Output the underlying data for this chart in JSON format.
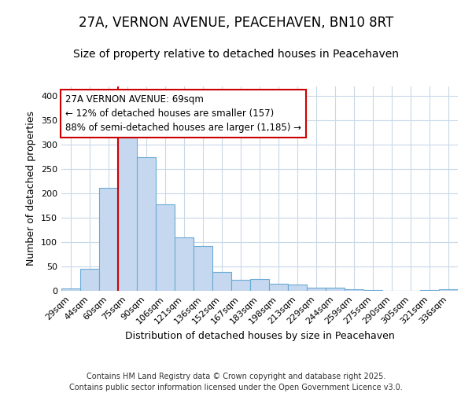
{
  "title_line1": "27A, VERNON AVENUE, PEACEHAVEN, BN10 8RT",
  "title_line2": "Size of property relative to detached houses in Peacehaven",
  "xlabel": "Distribution of detached houses by size in Peacehaven",
  "ylabel": "Number of detached properties",
  "categories": [
    "29sqm",
    "44sqm",
    "60sqm",
    "75sqm",
    "90sqm",
    "106sqm",
    "121sqm",
    "136sqm",
    "152sqm",
    "167sqm",
    "183sqm",
    "198sqm",
    "213sqm",
    "229sqm",
    "244sqm",
    "259sqm",
    "275sqm",
    "290sqm",
    "305sqm",
    "321sqm",
    "336sqm"
  ],
  "values": [
    5,
    45,
    212,
    315,
    275,
    178,
    110,
    92,
    38,
    23,
    25,
    15,
    13,
    6,
    7,
    3,
    2,
    0,
    0,
    1,
    4
  ],
  "bar_color": "#C5D8F0",
  "bar_edge_color": "#6AAAD4",
  "vline_color": "#CC0000",
  "annotation_text": "27A VERNON AVENUE: 69sqm\n← 12% of detached houses are smaller (157)\n88% of semi-detached houses are larger (1,185) →",
  "annotation_box_color": "#ffffff",
  "annotation_box_edge": "#CC0000",
  "ylim": [
    0,
    420
  ],
  "yticks": [
    0,
    50,
    100,
    150,
    200,
    250,
    300,
    350,
    400
  ],
  "grid_color": "#C8D8E8",
  "plot_bg_color": "#ffffff",
  "fig_bg_color": "#ffffff",
  "footnote": "Contains HM Land Registry data © Crown copyright and database right 2025.\nContains public sector information licensed under the Open Government Licence v3.0.",
  "title_fontsize": 12,
  "subtitle_fontsize": 10,
  "axis_label_fontsize": 9,
  "tick_fontsize": 8,
  "annotation_fontsize": 8.5,
  "footnote_fontsize": 7
}
